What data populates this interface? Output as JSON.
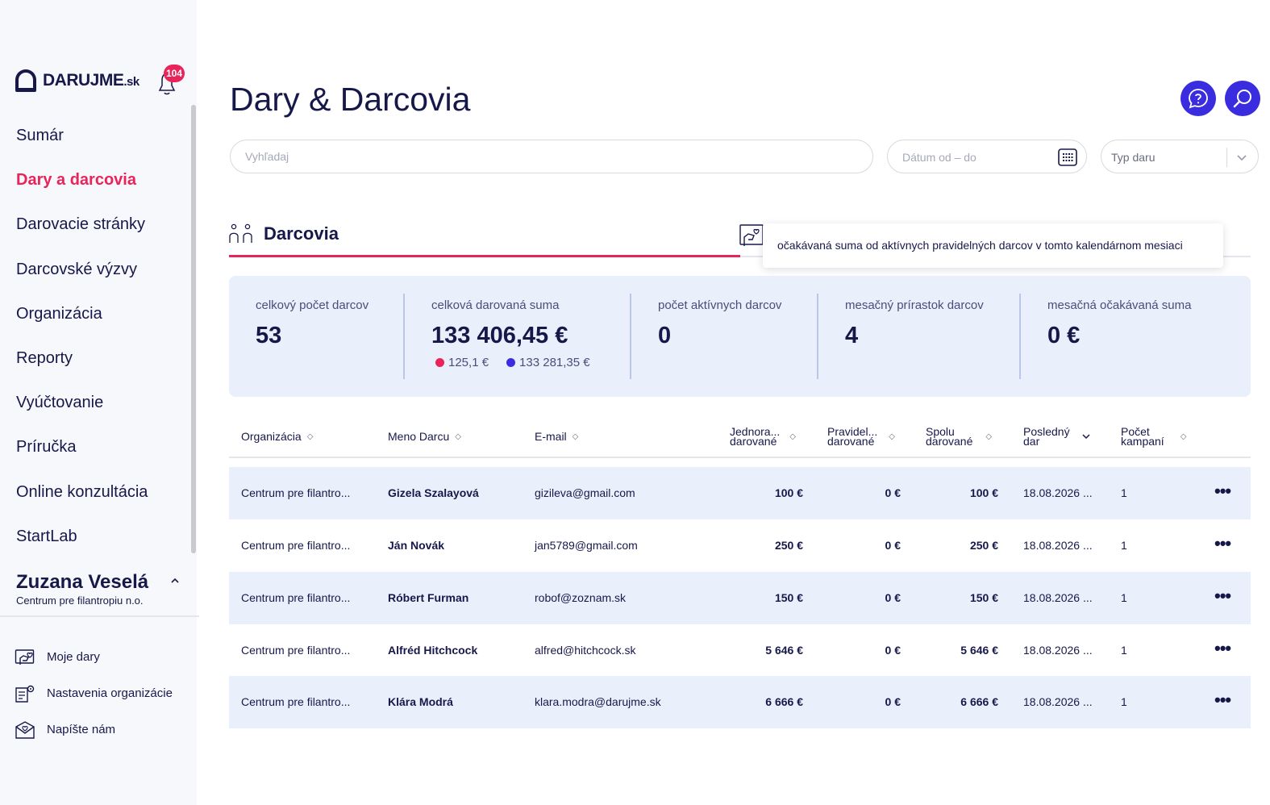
{
  "brand": {
    "name": "DARUJME",
    "suffix": ".sk",
    "notification_count": "104"
  },
  "sidebar": {
    "items": [
      {
        "label": "Sumár"
      },
      {
        "label": "Dary a darcovia"
      },
      {
        "label": "Darovacie stránky"
      },
      {
        "label": "Darcovské výzvy"
      },
      {
        "label": "Organizácia"
      },
      {
        "label": "Reporty"
      },
      {
        "label": "Vyúčtovanie"
      },
      {
        "label": "Príručka"
      },
      {
        "label": "Online konzultácia"
      },
      {
        "label": "StartLab"
      }
    ],
    "active_index": 1,
    "user": {
      "name": "Zuzana Veselá",
      "org": "Centrum pre filantropiu n.o."
    },
    "bottom_links": [
      {
        "label": "Moje dary",
        "icon": "hand-heart-icon"
      },
      {
        "label": "Nastavenia organizácie",
        "icon": "settings-doc-icon"
      },
      {
        "label": "Napíšte nám",
        "icon": "envelope-heart-icon"
      }
    ]
  },
  "header": {
    "title": "Dary & Darcovia"
  },
  "filters": {
    "search_placeholder": "Vyhľadaj",
    "date_placeholder": "Dátum od – do",
    "type_placeholder": "Typ daru"
  },
  "section": {
    "title": "Darcovia"
  },
  "tooltip": "očakávaná suma od aktívnych pravidelných darcov v tomto kalendárnom mesiaci",
  "stats": [
    {
      "label": "celkový počet darcov",
      "value": "53"
    },
    {
      "label": "celková darovaná suma",
      "value": "133 406,45 €",
      "sub_one": "125,1 €",
      "sub_two": "133 281,35 €"
    },
    {
      "label": "počet aktívnych darcov",
      "value": "0"
    },
    {
      "label": "mesačný prírastok darcov",
      "value": "4"
    },
    {
      "label": "mesačná očakávaná suma",
      "value": "0 €"
    }
  ],
  "table": {
    "columns": [
      {
        "l1": "Organizácia",
        "l2": ""
      },
      {
        "l1": "Meno Darcu",
        "l2": ""
      },
      {
        "l1": "E-mail",
        "l2": ""
      },
      {
        "l1": "Jednora...",
        "l2": "darované"
      },
      {
        "l1": "Pravidel...",
        "l2": "darované"
      },
      {
        "l1": "Spolu",
        "l2": "darované"
      },
      {
        "l1": "Posledný",
        "l2": "dar"
      },
      {
        "l1": "Počet",
        "l2": "kampaní"
      }
    ],
    "rows": [
      {
        "org": "Centrum pre filantro...",
        "name": "Gizela Szalayová",
        "email": "gizileva@gmail.com",
        "one_time": "100 €",
        "regular": "0 €",
        "total": "100 €",
        "last": "18.08.2026 ...",
        "campaigns": "1",
        "more": "•••"
      },
      {
        "org": "Centrum pre filantro...",
        "name": "Ján Novák",
        "email": "jan5789@gmail.com",
        "one_time": "250 €",
        "regular": "0 €",
        "total": "250 €",
        "last": "18.08.2026 ...",
        "campaigns": "1",
        "more": "•••"
      },
      {
        "org": "Centrum pre filantro...",
        "name": "Róbert Furman",
        "email": "robof@zoznam.sk",
        "one_time": "150 €",
        "regular": "0 €",
        "total": "150 €",
        "last": "18.08.2026 ...",
        "campaigns": "1",
        "more": "•••"
      },
      {
        "org": "Centrum pre filantro...",
        "name": "Alfréd Hitchcock",
        "email": "alfred@hitchcock.sk",
        "one_time": "5 646 €",
        "regular": "0 €",
        "total": "5 646 €",
        "last": "18.08.2026 ...",
        "campaigns": "1",
        "more": "•••"
      },
      {
        "org": "Centrum pre filantro...",
        "name": "Klára Modrá",
        "email": "klara.modra@darujme.sk",
        "one_time": "6 666 €",
        "regular": "0 €",
        "total": "6 666 €",
        "last": "18.08.2026 ...",
        "campaigns": "1",
        "more": "•••"
      }
    ]
  },
  "colors": {
    "accent": "#e8245a",
    "primary": "#3a2de0",
    "navy": "#17184a",
    "panel": "#e9f0fb"
  },
  "icons": {
    "help": "help-chat-icon",
    "search": "search-icon",
    "calendar": "calendar-icon",
    "chevron": "chevron-down-icon",
    "donors": "donors-icon"
  }
}
